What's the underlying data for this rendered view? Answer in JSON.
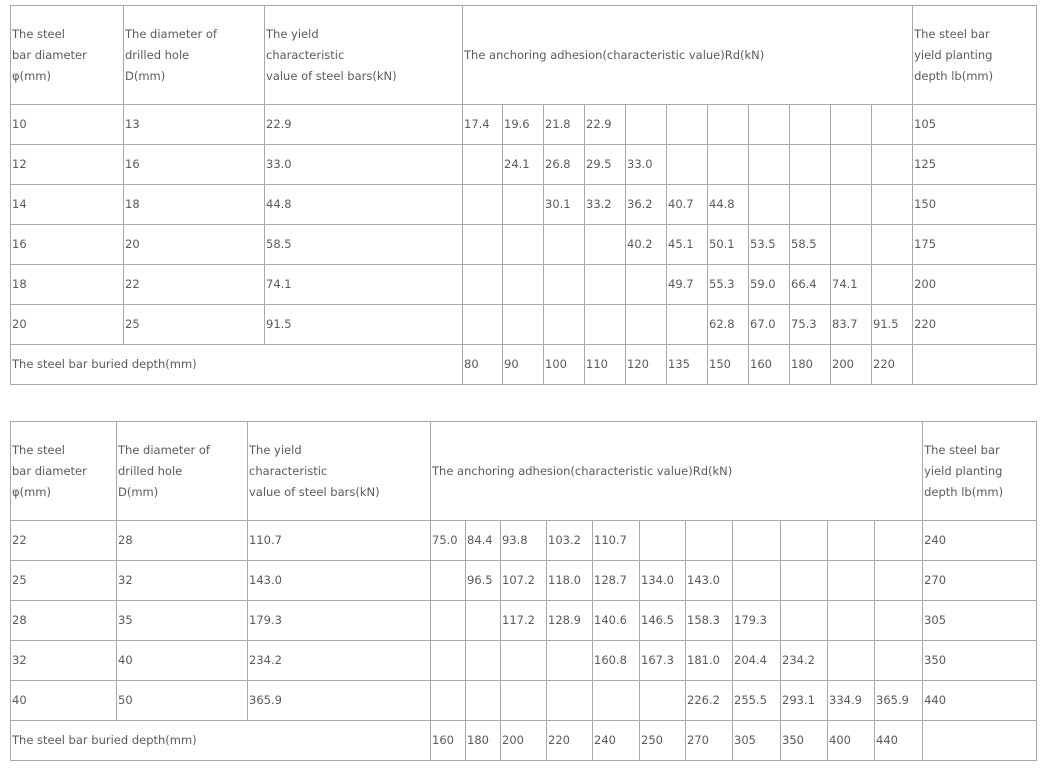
{
  "tables": [
    {
      "headers": {
        "bar_diameter": [
          "The steel",
          "bar diameter",
          "φ(mm)"
        ],
        "hole_diameter": [
          "The diameter of",
          "drilled hole",
          "D(mm)"
        ],
        "yield_value": [
          "The yield",
          "characteristic",
          "value of steel bars(kN)"
        ],
        "adhesion": "The anchoring adhesion(characteristic value)Rd(kN)",
        "planting_depth": [
          "The steel bar",
          "yield planting",
          "depth lb(mm)"
        ]
      },
      "rows": [
        {
          "d": "10",
          "D": "13",
          "yield": "22.9",
          "rd": [
            "17.4",
            "19.6",
            "21.8",
            "22.9",
            "",
            "",
            "",
            "",
            "",
            "",
            ""
          ],
          "lb": "105"
        },
        {
          "d": "12",
          "D": "16",
          "yield": "33.0",
          "rd": [
            "",
            "24.1",
            "26.8",
            "29.5",
            "33.0",
            "",
            "",
            "",
            "",
            "",
            ""
          ],
          "lb": "125"
        },
        {
          "d": "14",
          "D": "18",
          "yield": "44.8",
          "rd": [
            "",
            "",
            "30.1",
            "33.2",
            "36.2",
            "40.7",
            "44.8",
            "",
            "",
            "",
            ""
          ],
          "lb": "150"
        },
        {
          "d": "16",
          "D": "20",
          "yield": "58.5",
          "rd": [
            "",
            "",
            "",
            "",
            "40.2",
            "45.1",
            "50.1",
            "53.5",
            "58.5",
            "",
            ""
          ],
          "lb": "175"
        },
        {
          "d": "18",
          "D": "22",
          "yield": "74.1",
          "rd": [
            "",
            "",
            "",
            "",
            "",
            "49.7",
            "55.3",
            "59.0",
            "66.4",
            "74.1",
            ""
          ],
          "lb": "200"
        },
        {
          "d": "20",
          "D": "25",
          "yield": "91.5",
          "rd": [
            "",
            "",
            "",
            "",
            "",
            "",
            "62.8",
            "67.0",
            "75.3",
            "83.7",
            "91.5"
          ],
          "lb": "220"
        }
      ],
      "footer_label": "The steel bar buried depth(mm)",
      "buried_depths": [
        "80",
        "90",
        "100",
        "110",
        "120",
        "135",
        "150",
        "160",
        "180",
        "200",
        "220"
      ]
    },
    {
      "headers": {
        "bar_diameter": [
          "The steel",
          "bar diameter",
          "φ(mm)"
        ],
        "hole_diameter": [
          "The diameter of",
          "drilled hole",
          "D(mm)"
        ],
        "yield_value": [
          "The yield",
          "characteristic",
          "value of steel bars(kN)"
        ],
        "adhesion": "The anchoring adhesion(characteristic value)Rd(kN)",
        "planting_depth": [
          "The steel bar",
          "yield planting",
          "depth lb(mm)"
        ]
      },
      "rows": [
        {
          "d": "22",
          "D": "28",
          "yield": "110.7",
          "rd": [
            "75.0",
            "84.4",
            "93.8",
            "103.2",
            "110.7",
            "",
            "",
            "",
            "",
            "",
            ""
          ],
          "lb": "240"
        },
        {
          "d": "25",
          "D": "32",
          "yield": "143.0",
          "rd": [
            "",
            "96.5",
            "107.2",
            "118.0",
            "128.7",
            "134.0",
            "143.0",
            "",
            "",
            "",
            ""
          ],
          "lb": "270"
        },
        {
          "d": "28",
          "D": "35",
          "yield": "179.3",
          "rd": [
            "",
            "",
            "117.2",
            "128.9",
            "140.6",
            "146.5",
            "158.3",
            "179.3",
            "",
            "",
            ""
          ],
          "lb": "305"
        },
        {
          "d": "32",
          "D": "40",
          "yield": "234.2",
          "rd": [
            "",
            "",
            "",
            "",
            "160.8",
            "167.3",
            "181.0",
            "204.4",
            "234.2",
            "",
            ""
          ],
          "lb": "350"
        },
        {
          "d": "40",
          "D": "50",
          "yield": "365.9",
          "rd": [
            "",
            "",
            "",
            "",
            "",
            "",
            "226.2",
            "255.5",
            "293.1",
            "334.9",
            "365.9"
          ],
          "lb": "440"
        }
      ],
      "footer_label": "The steel bar buried depth(mm)",
      "buried_depths": [
        "160",
        "180",
        "200",
        "220",
        "240",
        "250",
        "270",
        "305",
        "350",
        "400",
        "440"
      ]
    }
  ]
}
